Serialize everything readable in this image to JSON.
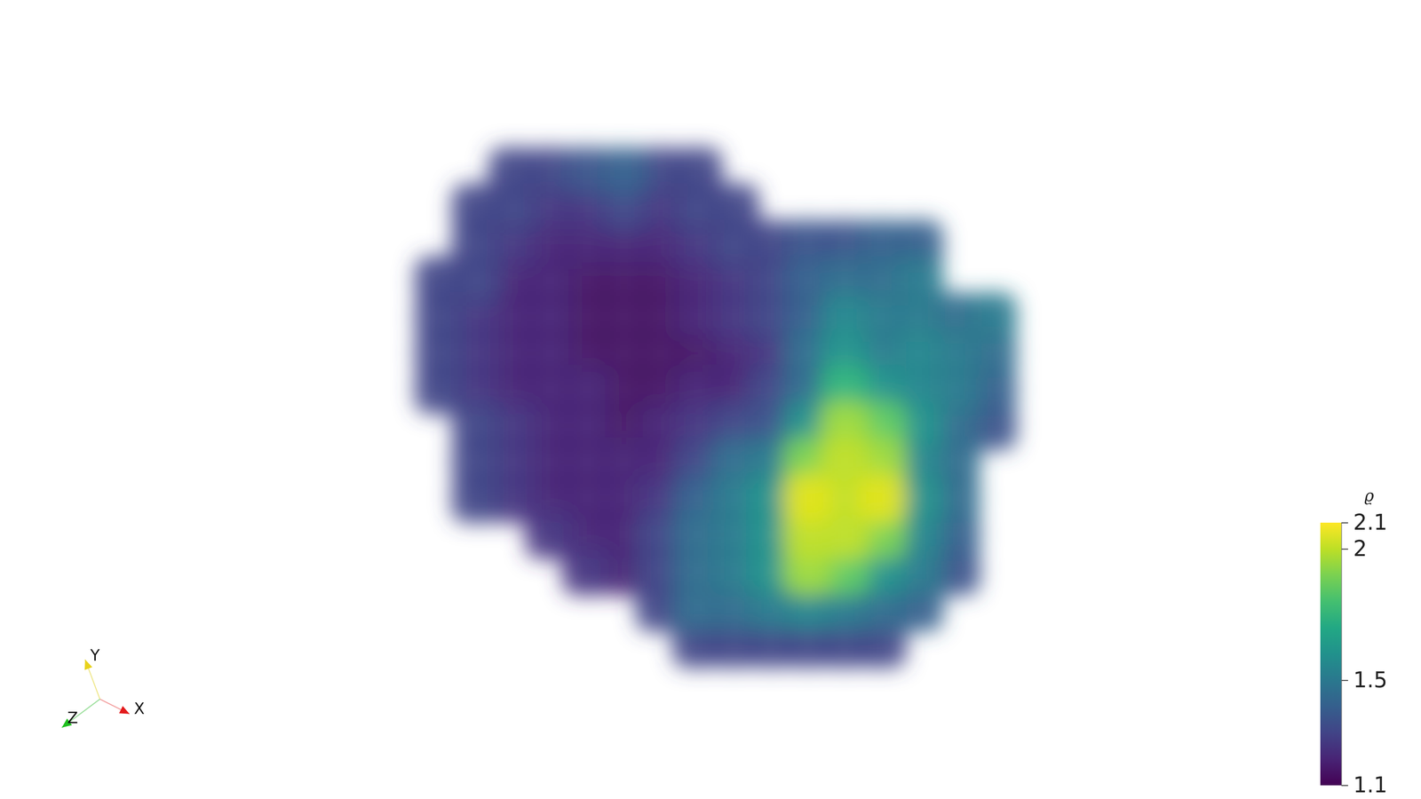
{
  "chart_data": {
    "type": "volume",
    "axes": {
      "x": "X",
      "y": "Y",
      "z": "Z"
    },
    "colorbar": {
      "title": "ϱ",
      "range": [
        1.1,
        2.1
      ],
      "ticks": [
        1.1,
        1.5,
        2,
        2.1
      ]
    },
    "cells": [
      [
        null,
        null,
        1.3,
        1.3,
        1.35,
        1.4,
        1.3,
        1.3,
        null,
        null,
        null,
        null,
        null,
        null,
        null,
        null
      ],
      [
        null,
        1.3,
        1.3,
        1.25,
        1.25,
        1.3,
        1.25,
        1.3,
        1.3,
        null,
        null,
        null,
        null,
        null,
        null,
        null
      ],
      [
        null,
        1.3,
        1.25,
        1.2,
        1.2,
        1.2,
        1.2,
        1.25,
        1.3,
        1.3,
        1.35,
        1.35,
        1.4,
        1.4,
        null,
        null
      ],
      [
        1.3,
        1.3,
        1.2,
        1.2,
        1.15,
        1.15,
        1.15,
        1.2,
        1.25,
        1.3,
        1.4,
        1.45,
        1.45,
        1.5,
        null,
        null
      ],
      [
        1.3,
        1.25,
        1.2,
        1.2,
        1.15,
        1.15,
        1.15,
        1.2,
        1.25,
        1.3,
        1.4,
        1.55,
        1.5,
        1.5,
        1.45,
        1.5
      ],
      [
        1.3,
        1.25,
        1.2,
        1.2,
        1.15,
        1.15,
        1.15,
        1.15,
        1.2,
        1.25,
        1.45,
        1.6,
        1.5,
        1.55,
        1.5,
        1.45
      ],
      [
        1.3,
        1.25,
        1.2,
        1.2,
        1.2,
        1.15,
        1.15,
        1.2,
        1.2,
        1.3,
        1.45,
        1.75,
        1.6,
        1.55,
        1.5,
        1.4
      ],
      [
        null,
        1.3,
        1.25,
        1.2,
        1.2,
        1.15,
        1.2,
        1.25,
        1.3,
        1.35,
        1.6,
        1.95,
        1.85,
        1.6,
        1.45,
        1.35
      ],
      [
        null,
        1.3,
        1.25,
        1.2,
        1.2,
        1.2,
        1.2,
        1.3,
        1.45,
        1.5,
        1.9,
        2.0,
        1.95,
        1.55,
        1.45,
        null
      ],
      [
        null,
        1.3,
        1.25,
        1.2,
        1.2,
        1.2,
        1.25,
        1.4,
        1.5,
        1.6,
        2.05,
        2.0,
        2.05,
        1.6,
        1.45,
        null
      ],
      [
        null,
        null,
        null,
        1.25,
        1.2,
        1.2,
        1.3,
        1.45,
        1.5,
        1.6,
        2.0,
        2.0,
        1.9,
        1.55,
        1.4,
        null
      ],
      [
        null,
        null,
        null,
        null,
        1.25,
        1.2,
        1.3,
        1.45,
        1.5,
        1.6,
        1.95,
        1.85,
        1.6,
        1.5,
        1.35,
        null
      ],
      [
        null,
        null,
        null,
        null,
        null,
        null,
        1.3,
        1.45,
        1.45,
        1.5,
        1.55,
        1.5,
        1.45,
        1.4,
        null,
        null
      ],
      [
        null,
        null,
        null,
        null,
        null,
        null,
        null,
        1.3,
        1.3,
        1.3,
        1.3,
        1.3,
        1.3,
        null,
        null,
        null
      ]
    ]
  }
}
